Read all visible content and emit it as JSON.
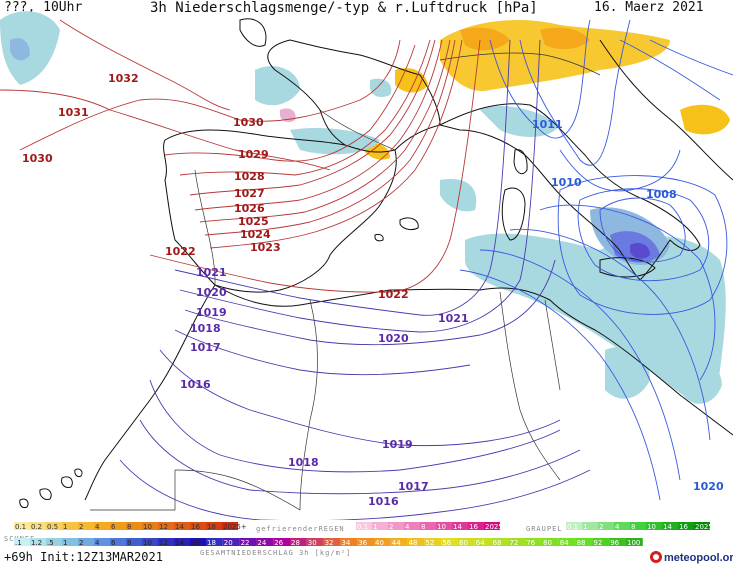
{
  "header": {
    "left": "???, 10Uhr",
    "title": "3h Niederschlagsmenge/-typ & r.Luftdruck [hPa]",
    "date": "16. Maerz 2021"
  },
  "map": {
    "isobar_labels": [
      {
        "text": "1032",
        "color": "#a01818"
      },
      {
        "text": "1031",
        "color": "#a01818"
      },
      {
        "text": "1030",
        "color": "#a01818"
      },
      {
        "text": "1030",
        "color": "#a01818"
      },
      {
        "text": "1029",
        "color": "#a01818"
      },
      {
        "text": "1028",
        "color": "#a01818"
      },
      {
        "text": "1027",
        "color": "#a01818"
      },
      {
        "text": "1026",
        "color": "#a01818"
      },
      {
        "text": "1025",
        "color": "#a01818"
      },
      {
        "text": "1024",
        "color": "#a01818"
      },
      {
        "text": "1023",
        "color": "#a01818"
      },
      {
        "text": "1022",
        "color": "#a01818"
      },
      {
        "text": "1022",
        "color": "#a01818"
      },
      {
        "text": "1021",
        "color": "#5a2aa8"
      },
      {
        "text": "1020",
        "color": "#5a2aa8"
      },
      {
        "text": "1019",
        "color": "#5a2aa8"
      },
      {
        "text": "1018",
        "color": "#5a2aa8"
      },
      {
        "text": "1017",
        "color": "#5a2aa8"
      },
      {
        "text": "1016",
        "color": "#5a2aa8"
      },
      {
        "text": "1021",
        "color": "#5a2aa8"
      },
      {
        "text": "1020",
        "color": "#5a2aa8"
      },
      {
        "text": "1019",
        "color": "#5a2aa8"
      },
      {
        "text": "1018",
        "color": "#5a2aa8"
      },
      {
        "text": "1017",
        "color": "#5a2aa8"
      },
      {
        "text": "1016",
        "color": "#5a2aa8"
      },
      {
        "text": "1011",
        "color": "#2a5ad8"
      },
      {
        "text": "1010",
        "color": "#2a5ad8"
      },
      {
        "text": "1008",
        "color": "#2a5ad8"
      },
      {
        "text": "1020",
        "color": "#2a5ad8"
      }
    ]
  },
  "legend": {
    "snow_title": "SCHNEE",
    "snow_top": [
      "0.1",
      "0.2",
      "0.5",
      "1",
      "2",
      "4",
      "6",
      "8",
      "10",
      "12",
      "14",
      "16",
      "18",
      "2025+"
    ],
    "snow_bottom": [
      ".1",
      "1.2",
      ".5",
      "1",
      "2",
      "4",
      "6",
      "8",
      "10",
      "12",
      "14",
      "16"
    ],
    "freezing_title": "gefrierenderREGEN",
    "freezing_values": [
      "0.1",
      "1",
      "2",
      "4",
      "8",
      "10",
      "14",
      "16",
      "2025+"
    ],
    "graupel_title": "GRAUPEL",
    "graupel_values": [
      "0.1",
      "1",
      "2",
      "4",
      "8",
      "10",
      "14",
      "16",
      "2025+"
    ],
    "total_title": "GESAMTNIEDERSCHLAG 3h [kg/m²]",
    "total_values": [
      "18",
      "20",
      "22",
      "24",
      "26",
      "28",
      "30",
      "32",
      "34",
      "36",
      "40",
      "44",
      "48",
      "52",
      "56",
      "60",
      "64",
      "68",
      "72",
      "76",
      "80",
      "84",
      "88",
      "92",
      "96",
      "100"
    ]
  },
  "footer": {
    "runtime": "+69h Init:12Z13MAR2021",
    "logo": "meteopool.org"
  }
}
